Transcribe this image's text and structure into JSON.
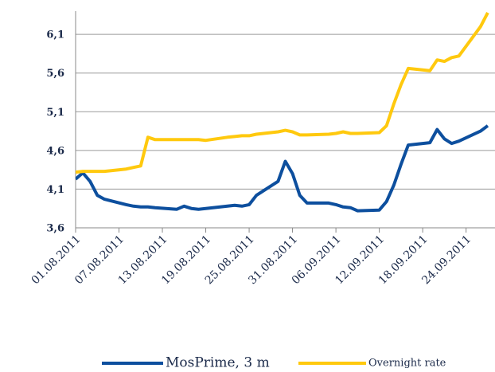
{
  "chart_data": {
    "type": "line",
    "x": [
      "01.08.2011",
      "02.08.2011",
      "03.08.2011",
      "04.08.2011",
      "05.08.2011",
      "08.08.2011",
      "09.08.2011",
      "10.08.2011",
      "11.08.2011",
      "12.08.2011",
      "15.08.2011",
      "16.08.2011",
      "17.08.2011",
      "18.08.2011",
      "19.08.2011",
      "22.08.2011",
      "23.08.2011",
      "24.08.2011",
      "25.08.2011",
      "26.08.2011",
      "29.08.2011",
      "30.08.2011",
      "31.08.2011",
      "01.09.2011",
      "02.09.2011",
      "05.09.2011",
      "06.09.2011",
      "07.09.2011",
      "08.09.2011",
      "09.09.2011",
      "12.09.2011",
      "13.09.2011",
      "14.09.2011",
      "15.09.2011",
      "16.09.2011",
      "19.09.2011",
      "20.09.2011",
      "21.09.2011",
      "22.09.2011",
      "23.09.2011",
      "26.09.2011",
      "27.09.2011"
    ],
    "series": [
      {
        "name": "MosPrime, 3 m",
        "color": "#0d4f9e",
        "values": [
          4.23,
          4.31,
          4.2,
          4.02,
          3.97,
          3.9,
          3.88,
          3.87,
          3.87,
          3.86,
          3.84,
          3.88,
          3.85,
          3.84,
          3.85,
          3.88,
          3.89,
          3.88,
          3.9,
          4.02,
          4.2,
          4.46,
          4.3,
          4.02,
          3.92,
          3.92,
          3.9,
          3.87,
          3.86,
          3.82,
          3.83,
          3.94,
          4.15,
          4.42,
          4.67,
          4.7,
          4.87,
          4.75,
          4.69,
          4.72,
          4.85,
          4.92
        ]
      },
      {
        "name": "Overnight rate",
        "color": "#ffc90e",
        "values": [
          4.32,
          4.33,
          4.33,
          4.33,
          4.33,
          4.36,
          4.38,
          4.4,
          4.77,
          4.74,
          4.74,
          4.74,
          4.74,
          4.74,
          4.73,
          4.77,
          4.78,
          4.79,
          4.79,
          4.81,
          4.84,
          4.86,
          4.84,
          4.8,
          4.8,
          4.81,
          4.82,
          4.84,
          4.82,
          4.82,
          4.83,
          4.92,
          5.2,
          5.45,
          5.66,
          5.63,
          5.77,
          5.75,
          5.8,
          5.82,
          6.2,
          6.38
        ]
      }
    ],
    "xlim": [
      "01.08.2011",
      "28.09.2011"
    ],
    "xticks": [
      "01.08.2011",
      "07.08.2011",
      "13.08.2011",
      "19.08.2011",
      "25.08.2011",
      "31.08.2011",
      "06.09.2011",
      "12.09.2011",
      "18.09.2011",
      "24.09.2011"
    ],
    "ylim": [
      3.6,
      6.4
    ],
    "yticks": [
      {
        "value": 3.6,
        "label": "3,6"
      },
      {
        "value": 4.1,
        "label": "4,1"
      },
      {
        "value": 4.6,
        "label": "4,6"
      },
      {
        "value": 5.1,
        "label": "5,1"
      },
      {
        "value": 5.6,
        "label": "5,6"
      },
      {
        "value": 6.1,
        "label": "6,1"
      }
    ],
    "grid": true,
    "legend": "bottom"
  }
}
